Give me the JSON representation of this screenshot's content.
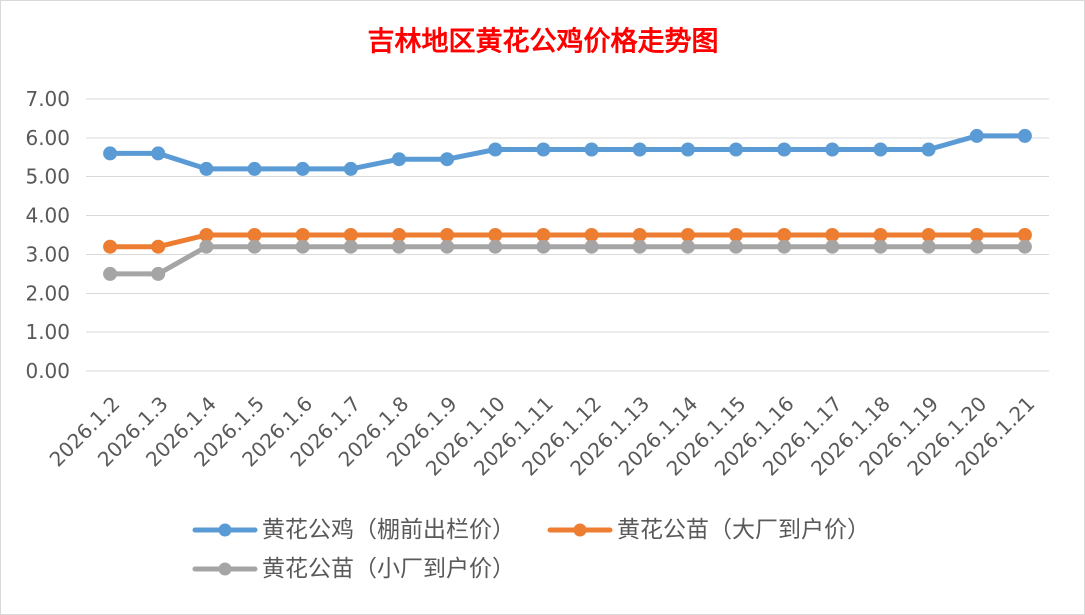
{
  "chart_data": {
    "type": "line",
    "title": "吉林地区黄花公鸡价格走势图",
    "title_color": "#FF0000",
    "categories": [
      "2026.1.2",
      "2026.1.3",
      "2026.1.4",
      "2026.1.5",
      "2026.1.6",
      "2026.1.7",
      "2026.1.8",
      "2026.1.9",
      "2026.1.10",
      "2026.1.11",
      "2026.1.12",
      "2026.1.13",
      "2026.1.14",
      "2026.1.15",
      "2026.1.16",
      "2026.1.17",
      "2026.1.18",
      "2026.1.19",
      "2026.1.20",
      "2026.1.21"
    ],
    "ylim": [
      0,
      7
    ],
    "y_tick_labels": [
      "0.00",
      "1.00",
      "2.00",
      "3.00",
      "4.00",
      "5.00",
      "6.00",
      "7.00"
    ],
    "grid": true,
    "legend": "bottom",
    "series": [
      {
        "name": "黄花公鸡（棚前出栏价）",
        "color": "#5B9BD5",
        "values": [
          5.6,
          5.6,
          5.2,
          5.2,
          5.2,
          5.2,
          5.45,
          5.45,
          5.7,
          5.7,
          5.7,
          5.7,
          5.7,
          5.7,
          5.7,
          5.7,
          5.7,
          5.7,
          6.05,
          6.05
        ]
      },
      {
        "name": "黄花公苗（大厂到户价）",
        "color": "#ED7D31",
        "values": [
          3.2,
          3.2,
          3.5,
          3.5,
          3.5,
          3.5,
          3.5,
          3.5,
          3.5,
          3.5,
          3.5,
          3.5,
          3.5,
          3.5,
          3.5,
          3.5,
          3.5,
          3.5,
          3.5,
          3.5
        ]
      },
      {
        "name": "黄花公苗（小厂到户价）",
        "color": "#A5A5A5",
        "values": [
          2.5,
          2.5,
          3.2,
          3.2,
          3.2,
          3.2,
          3.2,
          3.2,
          3.2,
          3.2,
          3.2,
          3.2,
          3.2,
          3.2,
          3.2,
          3.2,
          3.2,
          3.2,
          3.2,
          3.2
        ]
      }
    ]
  }
}
